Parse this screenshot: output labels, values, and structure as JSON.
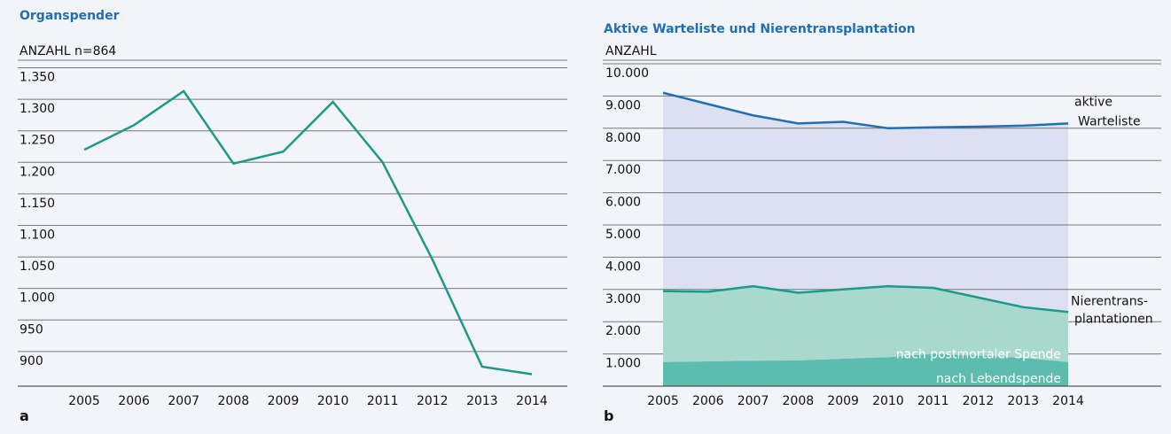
{
  "chart_data": [
    {
      "type": "line",
      "title": "Organspender",
      "ylabel": "ANZAHL n=864",
      "panel": "a",
      "categories": [
        "2005",
        "2006",
        "2007",
        "2008",
        "2009",
        "2010",
        "2011",
        "2012",
        "2013",
        "2014"
      ],
      "values": [
        1220,
        1259,
        1313,
        1198,
        1217,
        1296,
        1200,
        1046,
        876,
        864
      ],
      "color": "#1a9a8a",
      "ylim": [
        845,
        1362
      ],
      "yticks": [
        {
          "value": 900,
          "label": "900"
        },
        {
          "value": 950,
          "label": "950"
        },
        {
          "value": 1000,
          "label": "1.000"
        },
        {
          "value": 1050,
          "label": "1.050"
        },
        {
          "value": 1100,
          "label": "1.100"
        },
        {
          "value": 1150,
          "label": "1.150"
        },
        {
          "value": 1200,
          "label": "1.200"
        },
        {
          "value": 1250,
          "label": "1.250"
        },
        {
          "value": 1300,
          "label": "1.300"
        },
        {
          "value": 1350,
          "label": "1.350"
        }
      ],
      "grid": true
    },
    {
      "type": "area",
      "title": "Aktive Warteliste und Nierentransplantation",
      "ylabel": "ANZAHL",
      "panel": "b",
      "categories": [
        "2005",
        "2006",
        "2007",
        "2008",
        "2009",
        "2010",
        "2011",
        "2012",
        "2013",
        "2014"
      ],
      "series": [
        {
          "label_lines": [
            "aktive",
            "Warteliste"
          ],
          "color": "#1f6fb4",
          "fill": "#dce0f1",
          "stacked": false,
          "values": [
            9100,
            8750,
            8400,
            8150,
            8200,
            8000,
            8030,
            8050,
            8080,
            8150
          ]
        },
        {
          "name": "nach Lebendspende",
          "color": "#5cbcad",
          "stacked": true,
          "values": [
            750,
            770,
            790,
            800,
            850,
            900,
            1000,
            950,
            880,
            750
          ]
        },
        {
          "name": "nach postmortaler Spende",
          "color": "#a9d9cd",
          "stacked": true,
          "values": [
            2200,
            2160,
            2310,
            2100,
            2150,
            2200,
            2050,
            1800,
            1570,
            1550
          ]
        }
      ],
      "stack_outline_color": "#1a9a8a",
      "annotation_lines": [
        "Nierentrans-",
        "plantationen"
      ],
      "ylim": [
        0,
        10000
      ],
      "yticks": [
        {
          "value": 1000,
          "label": "1.000"
        },
        {
          "value": 2000,
          "label": "2.000"
        },
        {
          "value": 3000,
          "label": "3.000"
        },
        {
          "value": 4000,
          "label": "4.000"
        },
        {
          "value": 5000,
          "label": "5.000"
        },
        {
          "value": 6000,
          "label": "6.000"
        },
        {
          "value": 7000,
          "label": "7.000"
        },
        {
          "value": 8000,
          "label": "8.000"
        },
        {
          "value": 9000,
          "label": "9.000"
        },
        {
          "value": 10000,
          "label": "10.000"
        }
      ],
      "grid": true
    }
  ]
}
